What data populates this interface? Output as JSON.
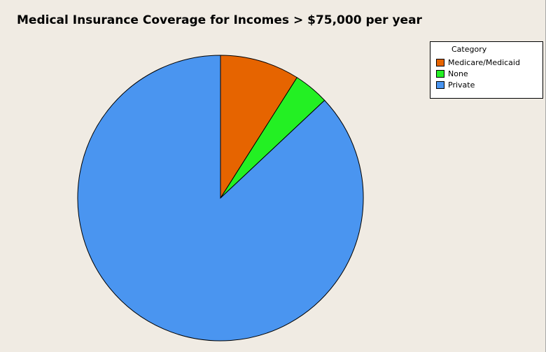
{
  "chart_data": {
    "type": "pie",
    "title": "Medical Insurance Coverage for Incomes > $75,000 per year",
    "legend_title": "Category",
    "legend_position": "top-right",
    "slices": [
      {
        "label": "Medicare/Medicaid",
        "value": 9,
        "color": "#e66400"
      },
      {
        "label": "None",
        "value": 4,
        "color": "#23f023"
      },
      {
        "label": "Private",
        "value": 87,
        "color": "#4a95f0"
      }
    ]
  }
}
